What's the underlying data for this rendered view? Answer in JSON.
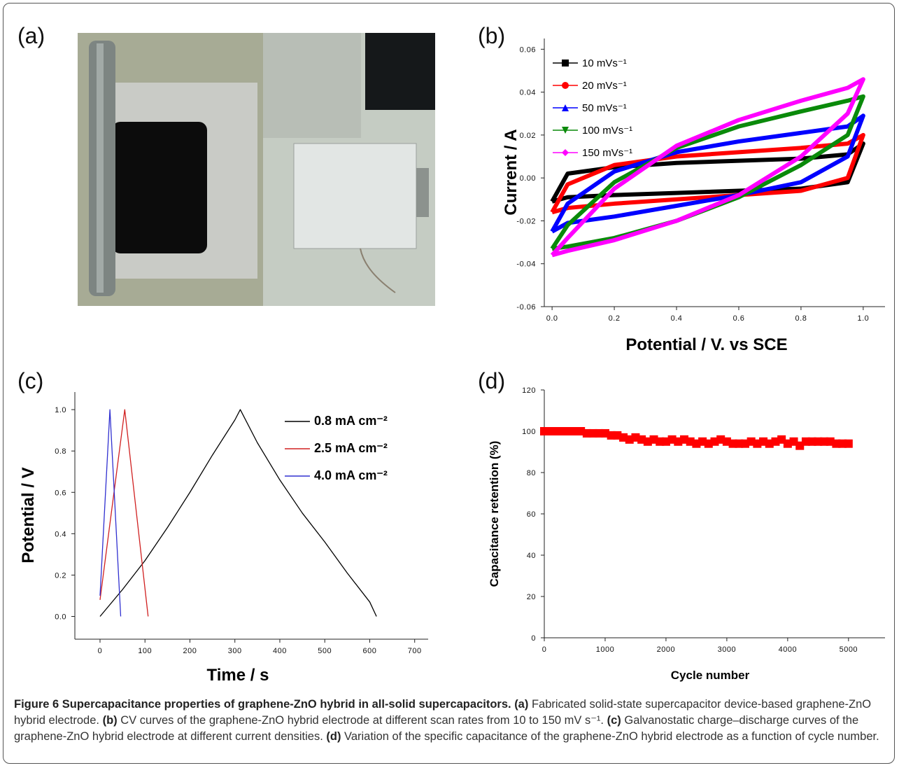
{
  "photo_panel": "(a)",
  "chart_data": [
    {
      "type": "line",
      "panel": "(b)",
      "xlabel": "Potential / V. vs SCE",
      "ylabel": "Current / A",
      "xlim": [
        -0.025,
        1.07
      ],
      "ylim": [
        -0.06,
        0.065
      ],
      "xticks": [
        {
          "value": 0,
          "label": "0.0"
        },
        0.2,
        0.4,
        0.6,
        0.8,
        {
          "value": 1,
          "label": "1.0"
        }
      ],
      "yticks": [
        -0.06,
        -0.04,
        -0.02,
        {
          "value": 0,
          "label": "0.00"
        },
        0.02,
        0.04,
        0.06
      ],
      "legend": "upper left",
      "line_width": 6,
      "series": [
        {
          "name": "10 mVs⁻¹",
          "color": "#000000",
          "marker": "square",
          "x": [
            0,
            0.05,
            0.2,
            0.4,
            0.6,
            0.8,
            0.95,
            1.0,
            0.95,
            0.8,
            0.6,
            0.4,
            0.2,
            0.05,
            0
          ],
          "values": [
            -0.011,
            0.002,
            0.005,
            0.007,
            0.008,
            0.009,
            0.011,
            0.016,
            -0.002,
            -0.005,
            -0.006,
            -0.007,
            -0.008,
            -0.009,
            -0.011
          ]
        },
        {
          "name": "20 mVs⁻¹",
          "color": "#ff0000",
          "marker": "circle",
          "x": [
            0,
            0.05,
            0.2,
            0.4,
            0.6,
            0.8,
            0.95,
            1.0,
            0.95,
            0.8,
            0.6,
            0.4,
            0.2,
            0.05,
            0
          ],
          "values": [
            -0.016,
            -0.003,
            0.006,
            0.01,
            0.012,
            0.014,
            0.016,
            0.02,
            0.0,
            -0.006,
            -0.008,
            -0.01,
            -0.012,
            -0.014,
            -0.016
          ]
        },
        {
          "name": "50 mVs⁻¹",
          "color": "#0000ff",
          "marker": "triangle-up",
          "x": [
            0,
            0.05,
            0.2,
            0.4,
            0.6,
            0.8,
            0.95,
            1.0,
            0.95,
            0.8,
            0.6,
            0.4,
            0.2,
            0.05,
            0
          ],
          "values": [
            -0.025,
            -0.012,
            0.003,
            0.012,
            0.017,
            0.021,
            0.024,
            0.029,
            0.01,
            -0.002,
            -0.008,
            -0.013,
            -0.018,
            -0.021,
            -0.025
          ]
        },
        {
          "name": "100 mVs⁻¹",
          "color": "#0a8a0a",
          "marker": "triangle-down",
          "x": [
            0,
            0.05,
            0.2,
            0.4,
            0.6,
            0.8,
            0.95,
            1.0,
            0.95,
            0.8,
            0.6,
            0.4,
            0.2,
            0.05,
            0
          ],
          "values": [
            -0.033,
            -0.022,
            -0.002,
            0.014,
            0.024,
            0.031,
            0.036,
            0.038,
            0.02,
            0.006,
            -0.009,
            -0.02,
            -0.028,
            -0.032,
            -0.033
          ]
        },
        {
          "name": "150 mVs⁻¹",
          "color": "#ff00ff",
          "marker": "diamond",
          "x": [
            0,
            0.05,
            0.2,
            0.4,
            0.6,
            0.8,
            0.95,
            1.0,
            0.95,
            0.8,
            0.6,
            0.4,
            0.2,
            0.05,
            0
          ],
          "values": [
            -0.036,
            -0.028,
            -0.005,
            0.015,
            0.027,
            0.036,
            0.042,
            0.046,
            0.03,
            0.01,
            -0.008,
            -0.02,
            -0.029,
            -0.034,
            -0.036
          ]
        }
      ]
    },
    {
      "type": "line",
      "panel": "(c)",
      "xlabel": "Time / s",
      "ylabel": "Potential / V",
      "xlim": [
        -56,
        730
      ],
      "ylim": [
        -0.11,
        1.085
      ],
      "xticks": [
        0,
        100,
        200,
        300,
        400,
        500,
        600,
        700
      ],
      "yticks": [
        {
          "value": 0,
          "label": "0.0"
        },
        0.2,
        0.4,
        0.6,
        0.8,
        {
          "value": 1,
          "label": "1.0"
        }
      ],
      "legend": "upper right",
      "line_width": 1.3,
      "series": [
        {
          "name": "0.8 mA cm⁻²",
          "color": "#000000",
          "x": [
            0,
            50,
            100,
            150,
            200,
            250,
            300,
            312,
            350,
            400,
            450,
            500,
            550,
            600,
            615
          ],
          "values": [
            0,
            0.13,
            0.27,
            0.43,
            0.6,
            0.78,
            0.95,
            1.0,
            0.84,
            0.66,
            0.5,
            0.36,
            0.21,
            0.07,
            0
          ]
        },
        {
          "name": "2.5 mA cm⁻²",
          "color": "#d02020",
          "x": [
            0,
            55,
            107
          ],
          "values": [
            0.08,
            1.0,
            0
          ]
        },
        {
          "name": "4.0 mA cm⁻²",
          "color": "#3030d0",
          "x": [
            0,
            22,
            46
          ],
          "values": [
            0.1,
            1.0,
            0
          ]
        }
      ]
    },
    {
      "type": "scatter",
      "panel": "(d)",
      "xlabel": "Cycle number",
      "ylabel": "Capacitance retention (%)",
      "xlim": [
        0,
        5600
      ],
      "ylim": [
        0,
        120
      ],
      "xticks": [
        0,
        1000,
        2000,
        3000,
        4000,
        5000
      ],
      "yticks": [
        0,
        20,
        40,
        60,
        80,
        100,
        120
      ],
      "series": [
        {
          "color": "#ff0000",
          "marker": "square",
          "x": [
            0,
            100,
            200,
            300,
            400,
            500,
            600,
            700,
            800,
            900,
            1000,
            1100,
            1200,
            1300,
            1400,
            1500,
            1600,
            1700,
            1800,
            1900,
            2000,
            2100,
            2200,
            2300,
            2400,
            2500,
            2600,
            2700,
            2800,
            2900,
            3000,
            3100,
            3200,
            3300,
            3400,
            3500,
            3600,
            3700,
            3800,
            3900,
            4000,
            4100,
            4200,
            4300,
            4400,
            4500,
            4600,
            4700,
            4800,
            4900,
            5000
          ],
          "values": [
            100,
            100,
            100,
            100,
            100,
            100,
            100,
            99,
            99,
            99,
            99,
            98,
            98,
            97,
            96,
            97,
            96,
            95,
            96,
            95,
            95,
            96,
            95,
            96,
            95,
            94,
            95,
            94,
            95,
            96,
            95,
            94,
            94,
            94,
            95,
            94,
            95,
            94,
            95,
            96,
            94,
            95,
            93,
            95,
            95,
            95,
            95,
            95,
            94,
            94,
            94
          ]
        }
      ]
    }
  ],
  "caption": {
    "title": "Figure 6 Supercapacitance properties of graphene-ZnO hybrid in all-solid supercapacitors.",
    "items": [
      {
        "label": "(a)",
        "text": "Fabricated solid-state supercapacitor device-based graphene-ZnO hybrid electrode."
      },
      {
        "label": "(b)",
        "text": "CV curves of the graphene-ZnO hybrid electrode at different scan rates from 10 to 150 mV s⁻¹."
      },
      {
        "label": "(c)",
        "text": "Galvanostatic charge–discharge curves of the graphene-ZnO hybrid electrode at different current densities."
      },
      {
        "label": "(d)",
        "text": "Variation of the specific capacitance of the graphene-ZnO hybrid electrode as a function of cycle number."
      }
    ]
  }
}
